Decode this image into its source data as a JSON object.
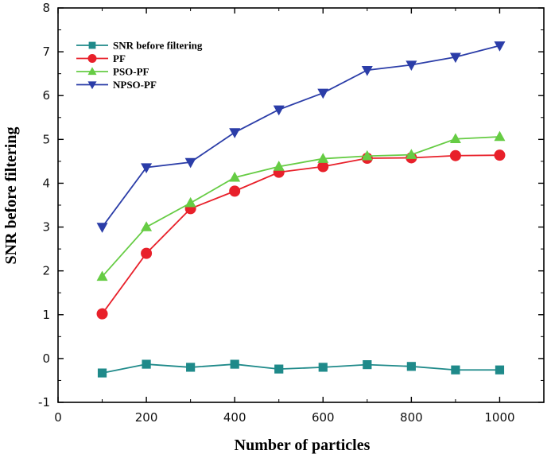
{
  "chart_data": {
    "type": "line",
    "title": "",
    "xlabel": "Number of particles",
    "ylabel": "SNR before filtering",
    "xlim": [
      0,
      1100
    ],
    "ylim": [
      -1,
      8
    ],
    "xticks": [
      0,
      200,
      400,
      600,
      800,
      1000
    ],
    "yticks": [
      -1,
      0,
      1,
      2,
      3,
      4,
      5,
      6,
      7,
      8
    ],
    "grid": false,
    "legend_position": "top-left",
    "x": [
      100,
      200,
      300,
      400,
      500,
      600,
      700,
      800,
      900,
      1000
    ],
    "series": [
      {
        "name": "SNR before filtering",
        "color": "#1f8a8a",
        "marker": "square",
        "values": [
          -0.33,
          -0.13,
          -0.2,
          -0.13,
          -0.24,
          -0.2,
          -0.14,
          -0.18,
          -0.26,
          -0.26
        ]
      },
      {
        "name": "PF",
        "color": "#e8202a",
        "marker": "circle",
        "values": [
          1.02,
          2.4,
          3.42,
          3.82,
          4.25,
          4.38,
          4.57,
          4.58,
          4.63,
          4.64
        ]
      },
      {
        "name": "PSO-PF",
        "color": "#66cc44",
        "marker": "triangle-up",
        "values": [
          1.87,
          3.0,
          3.55,
          4.13,
          4.38,
          4.56,
          4.62,
          4.65,
          5.01,
          5.06
        ]
      },
      {
        "name": "NPSO-PF",
        "color": "#2b3da8",
        "marker": "triangle-down",
        "values": [
          3.0,
          4.36,
          4.48,
          5.16,
          5.68,
          6.06,
          6.58,
          6.7,
          6.88,
          7.14
        ]
      }
    ]
  }
}
